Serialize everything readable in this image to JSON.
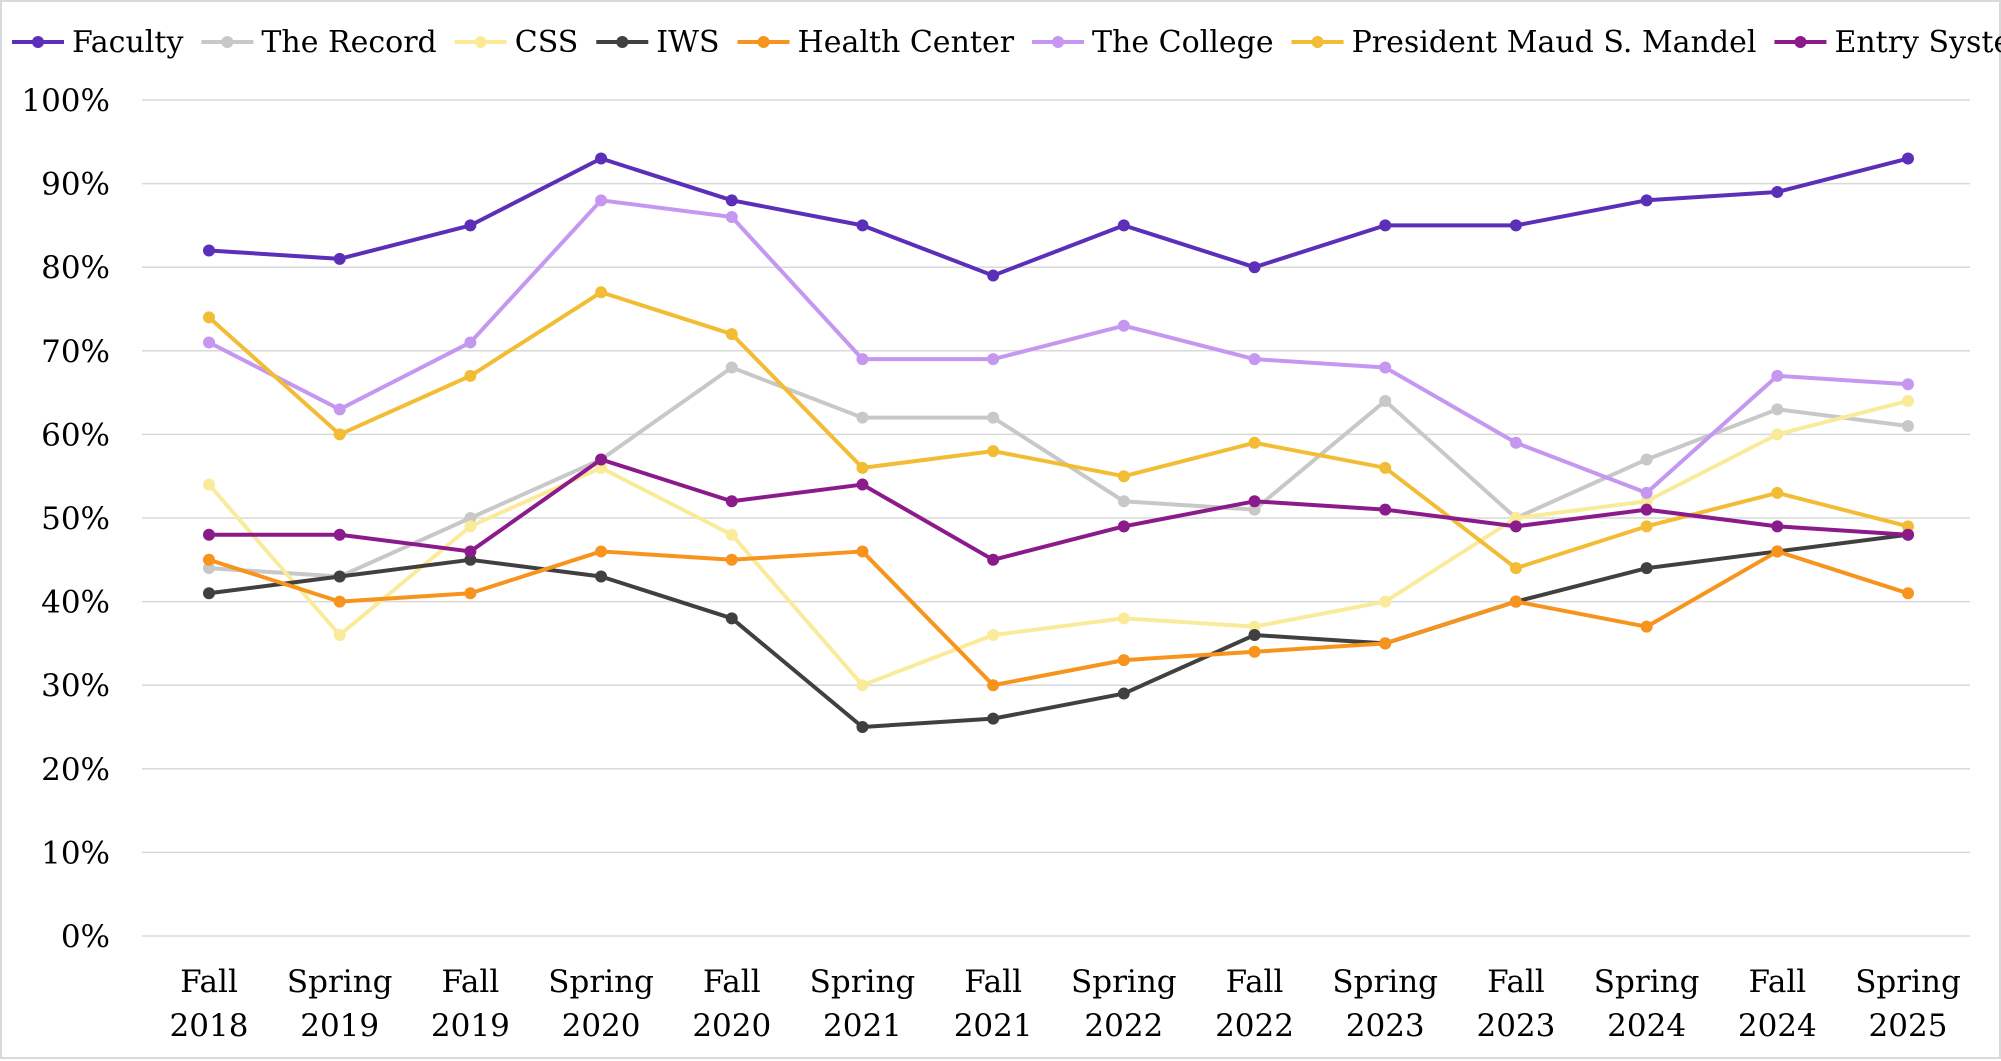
{
  "chart_data": {
    "type": "line",
    "title": "",
    "xlabel": "",
    "ylabel": "",
    "ylim": [
      0,
      100
    ],
    "yticks": [
      "0%",
      "10%",
      "20%",
      "30%",
      "40%",
      "50%",
      "60%",
      "70%",
      "80%",
      "90%",
      "100%"
    ],
    "grid": true,
    "legend_position": "top",
    "categories": [
      [
        "Fall",
        "2018"
      ],
      [
        "Spring",
        "2019"
      ],
      [
        "Fall",
        "2019"
      ],
      [
        "Spring",
        "2020"
      ],
      [
        "Fall",
        "2020"
      ],
      [
        "Spring",
        "2021"
      ],
      [
        "Fall",
        "2021"
      ],
      [
        "Spring",
        "2022"
      ],
      [
        "Fall",
        "2022"
      ],
      [
        "Spring",
        "2023"
      ],
      [
        "Fall",
        "2023"
      ],
      [
        "Spring",
        "2024"
      ],
      [
        "Fall",
        "2024"
      ],
      [
        "Spring",
        "2025"
      ]
    ],
    "series": [
      {
        "name": "Faculty",
        "color": "#5b2fb8",
        "values": [
          82,
          81,
          85,
          93,
          88,
          85,
          79,
          85,
          80,
          85,
          85,
          88,
          89,
          93
        ]
      },
      {
        "name": "The Record",
        "color": "#c8c8c8",
        "values": [
          44,
          43,
          50,
          57,
          68,
          62,
          62,
          52,
          51,
          64,
          50,
          57,
          63,
          61
        ]
      },
      {
        "name": "CSS",
        "color": "#faeb9a",
        "values": [
          54,
          36,
          49,
          56,
          48,
          30,
          36,
          38,
          37,
          40,
          50,
          52,
          60,
          64
        ]
      },
      {
        "name": "IWS",
        "color": "#404040",
        "values": [
          41,
          43,
          45,
          43,
          38,
          25,
          26,
          29,
          36,
          35,
          40,
          44,
          46,
          48
        ]
      },
      {
        "name": "Health Center",
        "color": "#f7941d",
        "values": [
          45,
          40,
          41,
          46,
          45,
          46,
          30,
          33,
          34,
          35,
          40,
          37,
          46,
          41
        ]
      },
      {
        "name": "The College",
        "color": "#c597f0",
        "values": [
          71,
          63,
          71,
          88,
          86,
          69,
          69,
          73,
          69,
          68,
          59,
          53,
          67,
          66
        ]
      },
      {
        "name": "President Maud S. Mandel",
        "color": "#f2bd35",
        "values": [
          74,
          60,
          67,
          77,
          72,
          56,
          58,
          55,
          59,
          56,
          44,
          49,
          53,
          49
        ]
      },
      {
        "name": "Entry System",
        "color": "#8b1a8b",
        "values": [
          48,
          48,
          46,
          57,
          52,
          54,
          45,
          49,
          52,
          51,
          49,
          51,
          49,
          48
        ]
      }
    ]
  }
}
